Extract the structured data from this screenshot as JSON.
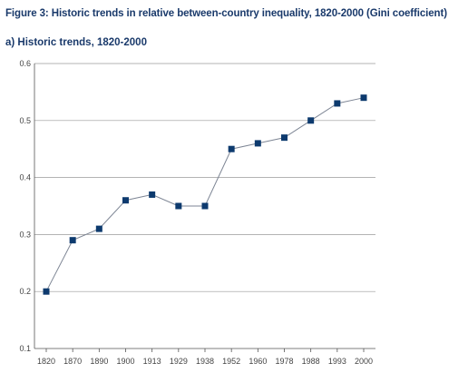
{
  "figure": {
    "title": "Figure 3: Historic trends in relative between-country inequality, 1820-2000 (Gini coefficient)",
    "subtitle": "a) Historic trends, 1820-2000"
  },
  "colors": {
    "title": "#1a3a6b",
    "marker": "#0d3a6e",
    "line": "#7d8594",
    "grid": "#9a9a9a",
    "axis": "#555555"
  },
  "chart_data": {
    "type": "line",
    "categories": [
      "1820",
      "1870",
      "1890",
      "1900",
      "1913",
      "1929",
      "1938",
      "1952",
      "1960",
      "1978",
      "1988",
      "1993",
      "2000"
    ],
    "values": [
      0.2,
      0.29,
      0.31,
      0.36,
      0.37,
      0.35,
      0.35,
      0.45,
      0.46,
      0.47,
      0.5,
      0.53,
      0.54
    ],
    "yticks": [
      "0.1",
      "0.2",
      "0.3",
      "0.4",
      "0.5",
      "0.6"
    ],
    "ylim": [
      0.1,
      0.6
    ],
    "grid": true,
    "legend": "none",
    "marker": "square"
  }
}
